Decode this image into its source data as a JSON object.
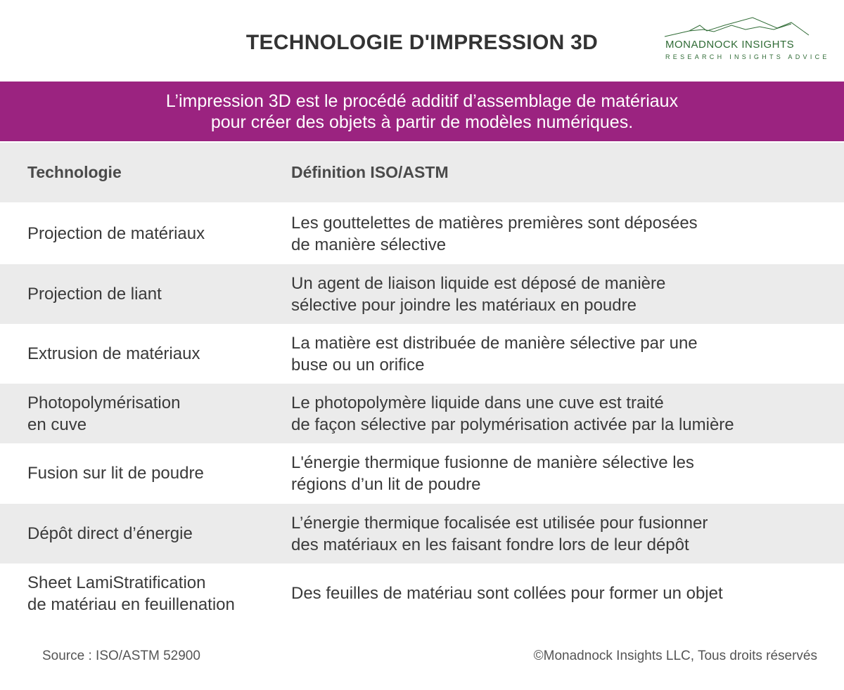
{
  "title": "TECHNOLOGIE D'IMPRESSION 3D",
  "logo": {
    "name": "MONADNOCK INSIGHTS",
    "tagline": "RESEARCH   INSIGHTS   ADVICE",
    "color": "#2f6b35"
  },
  "banner": {
    "line1": "L’impression 3D est le procédé additif d’assemblage de matériaux",
    "line2": "pour créer des objets à partir de modèles numériques.",
    "color": "#9b2380"
  },
  "table": {
    "headers": [
      "Technologie",
      "Définition ISO/ASTM"
    ],
    "rows": [
      {
        "tech": "Projection de matériaux",
        "def": "Les gouttelettes de matières premières sont déposées\nde manière sélective"
      },
      {
        "tech": "Projection de liant",
        "def": "Un agent de liaison liquide est déposé de manière\nsélective pour joindre les matériaux en poudre"
      },
      {
        "tech": "Extrusion de matériaux",
        "def": "La matière est distribuée de manière sélective par une\nbuse ou un orifice"
      },
      {
        "tech": "Photopolymérisation\nen cuve",
        "def": "Le photopolymère liquide dans une cuve est traité\nde façon sélective par polymérisation activée par la lumière"
      },
      {
        "tech": "Fusion sur lit de poudre",
        "def": "L'énergie thermique fusionne de manière sélective les\nrégions d’un lit de poudre"
      },
      {
        "tech": "Dépôt direct d’énergie",
        "def": "L’énergie thermique focalisée est utilisée pour fusionner\ndes matériaux en les faisant fondre lors de leur dépôt"
      },
      {
        "tech": "Sheet LamiStratification\nde matériau en feuillenation",
        "def": "Des feuilles de matériau sont collées pour former un objet"
      }
    ]
  },
  "footer": {
    "source": "Source : ISO/ASTM 52900",
    "copyright": "©Monadnock Insights LLC, Tous droits réservés"
  }
}
